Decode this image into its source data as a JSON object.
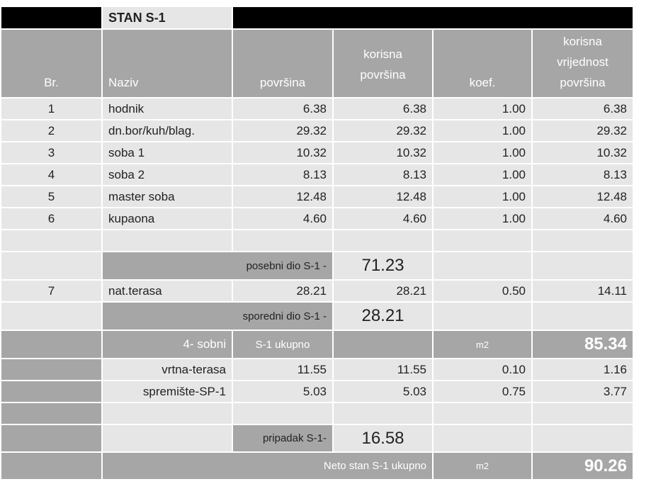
{
  "title": "STAN S-1",
  "header": [
    "Br.",
    "Naziv",
    "površina",
    "korisna površina",
    "koef.",
    "korisna vrijednost površina"
  ],
  "rows": [
    [
      "1",
      "hodnik",
      "6.38",
      "6.38",
      "1.00",
      "6.38"
    ],
    [
      "2",
      "dn.bor/kuh/blag.",
      "29.32",
      "29.32",
      "1.00",
      "29.32"
    ],
    [
      "3",
      "soba 1",
      "10.32",
      "10.32",
      "1.00",
      "10.32"
    ],
    [
      "4",
      "soba 2",
      "8.13",
      "8.13",
      "1.00",
      "8.13"
    ],
    [
      "5",
      "master soba",
      "12.48",
      "12.48",
      "1.00",
      "12.48"
    ],
    [
      "6",
      "kupaona",
      "4.60",
      "4.60",
      "1.00",
      "4.60"
    ]
  ],
  "posebni": {
    "label": "posebni dio S-1 -",
    "value": "71.23"
  },
  "row7": [
    "7",
    "nat.terasa",
    "28.21",
    "28.21",
    "0.50",
    "14.11"
  ],
  "sporedni": {
    "label": "sporedni dio S-1 -",
    "value": "28.21"
  },
  "ukupno": {
    "rooms": "4- sobni",
    "label": "S-1 ukupno",
    "unit": "m2",
    "value": "85.34"
  },
  "pripadak_rows": [
    [
      "vrtna-terasa",
      "11.55",
      "11.55",
      "0.10",
      "1.16"
    ],
    [
      "spremište-SP-1",
      "5.03",
      "5.03",
      "0.75",
      "3.77"
    ]
  ],
  "pripadak": {
    "label": "pripadak S-1-",
    "value": "16.58"
  },
  "neto": {
    "label": "Neto stan S-1 ukupno",
    "unit": "m2",
    "value": "90.26"
  }
}
